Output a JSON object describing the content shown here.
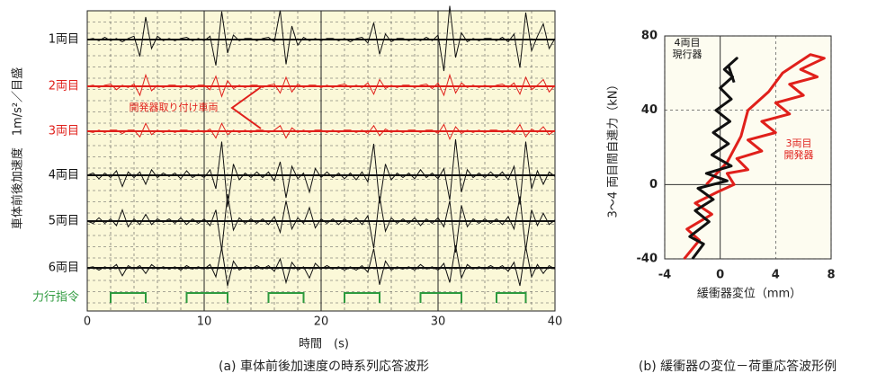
{
  "chart_data": [
    {
      "type": "waveform",
      "y_label": "車体前後加速度　1m/s²／目盛",
      "x_label": "時間　(s)",
      "caption": "(a) 車体前後加速度の時系列応答波形",
      "annotation": "開発器取り付け車両",
      "xlim": [
        0,
        40
      ],
      "xticks": [
        0,
        10,
        20,
        30,
        40
      ],
      "x": [
        0,
        0.5,
        1,
        1.5,
        2,
        2.5,
        3,
        3.5,
        4,
        4.5,
        5,
        5.5,
        6,
        6.5,
        7,
        7.5,
        8,
        8.5,
        9,
        9.5,
        10,
        10.5,
        11,
        11.5,
        12,
        12.5,
        13,
        13.5,
        14,
        14.5,
        15,
        15.5,
        16,
        16.5,
        17,
        17.5,
        18,
        18.5,
        19,
        19.5,
        20,
        20.5,
        21,
        21.5,
        22,
        22.5,
        23,
        23.5,
        24,
        24.5,
        25,
        25.5,
        26,
        26.5,
        27,
        27.5,
        28,
        28.5,
        29,
        29.5,
        30,
        30.5,
        31,
        31.5,
        32,
        32.5,
        33,
        33.5,
        34,
        34.5,
        35,
        35.5,
        36,
        36.5,
        37,
        37.5,
        38,
        38.5,
        39,
        39.5,
        40
      ],
      "series": [
        {
          "name": "1両目",
          "color": "#111111",
          "values": [
            0,
            0.1,
            -0.1,
            0.2,
            -0.1,
            0.1,
            -0.2,
            0.1,
            0.3,
            -1.5,
            2.0,
            -0.8,
            0.3,
            -0.1,
            0.1,
            -0.1,
            0.1,
            0.2,
            -0.1,
            0.1,
            -0.1,
            0.3,
            -2.3,
            2.5,
            -1.2,
            0.4,
            -0.1,
            0.1,
            0.1,
            -0.1,
            0.1,
            0.2,
            -0.2,
            2.6,
            -2.2,
            1.2,
            -0.5,
            0.2,
            -0.1,
            0.1,
            -0.1,
            0.1,
            0.1,
            -0.1,
            0.1,
            -0.2,
            0.1,
            0.2,
            -0.3,
            1.5,
            -1.3,
            0.5,
            -0.2,
            0.1,
            0.1,
            -0.1,
            0.1,
            -0.1,
            0.2,
            -0.1,
            0.4,
            -2.8,
            3.0,
            -1.6,
            0.6,
            -0.2,
            0.1,
            -0.1,
            0.1,
            0.1,
            -0.1,
            0.2,
            -0.2,
            0.5,
            -2.5,
            2.4,
            -1.0,
            0.3,
            1.4,
            -0.8,
            0.1
          ]
        },
        {
          "name": "2両目",
          "color": "#e0201b",
          "values": [
            0,
            0.1,
            -0.1,
            0.1,
            0.2,
            -0.3,
            0.1,
            -0.1,
            0.2,
            -0.8,
            1.0,
            -0.4,
            0.1,
            -0.1,
            0.1,
            0.1,
            -0.1,
            0.1,
            -0.2,
            0.1,
            0.1,
            -0.3,
            0.9,
            -0.9,
            0.5,
            -0.2,
            0.1,
            -0.1,
            0.1,
            0.1,
            -0.1,
            0.1,
            0.2,
            -0.6,
            0.8,
            -0.5,
            0.2,
            -0.1,
            0.1,
            0.1,
            -0.1,
            0.1,
            -0.1,
            0.1,
            0.2,
            -0.1,
            0.1,
            -0.1,
            0.3,
            -0.7,
            0.6,
            -0.2,
            0.1,
            -0.1,
            0.1,
            0.1,
            -0.1,
            0.1,
            0.2,
            -0.2,
            0.3,
            -0.8,
            1.0,
            -0.6,
            0.3,
            -0.1,
            0.1,
            -0.1,
            0.1,
            -0.1,
            0.1,
            0.2,
            -0.1,
            0.3,
            -0.7,
            0.8,
            -0.3,
            0.1,
            0.6,
            -0.5,
            0.1
          ]
        },
        {
          "name": "3両目",
          "color": "#e0201b",
          "values": [
            0,
            -0.1,
            0.1,
            -0.1,
            0.1,
            0.1,
            -0.2,
            0.1,
            0.1,
            -0.5,
            0.7,
            -0.3,
            0.1,
            -0.1,
            0.1,
            -0.1,
            0.1,
            0.1,
            -0.1,
            0.1,
            -0.1,
            0.2,
            -0.6,
            0.7,
            -0.3,
            0.1,
            -0.1,
            0.1,
            -0.1,
            0.1,
            0.1,
            -0.1,
            0.1,
            0.5,
            -0.6,
            0.3,
            -0.1,
            0.1,
            -0.1,
            0.1,
            0.1,
            -0.1,
            0.1,
            -0.1,
            0.1,
            0.1,
            -0.1,
            0.1,
            -0.2,
            0.5,
            -0.4,
            0.2,
            -0.1,
            0.1,
            -0.1,
            0.1,
            0.1,
            -0.1,
            0.1,
            0.1,
            -0.2,
            0.6,
            -0.7,
            0.4,
            -0.2,
            0.1,
            -0.1,
            0.1,
            -0.1,
            0.1,
            0.1,
            -0.1,
            0.1,
            -0.2,
            0.6,
            -0.5,
            0.2,
            -0.1,
            0.4,
            -0.3,
            0.1
          ]
        },
        {
          "name": "4両目",
          "color": "#111111",
          "values": [
            0,
            0.2,
            -0.3,
            0.2,
            -0.2,
            0.4,
            -1.0,
            0.3,
            -0.2,
            0.3,
            -0.8,
            0.5,
            -0.2,
            0.2,
            -0.1,
            0.2,
            -0.3,
            0.4,
            -0.2,
            0.1,
            -0.2,
            0.5,
            -1.2,
            3.0,
            -2.8,
            1.0,
            -0.4,
            0.2,
            -0.2,
            0.3,
            -0.2,
            0.3,
            -0.5,
            1.2,
            -2.0,
            0.8,
            -0.3,
            0.2,
            -1.5,
            0.6,
            -0.2,
            0.3,
            -0.2,
            0.2,
            -0.3,
            0.2,
            -0.4,
            0.3,
            -0.6,
            2.8,
            -2.5,
            1.0,
            -0.4,
            0.2,
            -0.2,
            0.2,
            -0.3,
            0.5,
            -0.2,
            0.2,
            -0.3,
            0.6,
            -2.2,
            3.2,
            -1.5,
            0.5,
            -0.2,
            0.2,
            -0.2,
            0.3,
            -0.2,
            0.3,
            -0.4,
            0.8,
            -2.6,
            3.0,
            -1.2,
            0.4,
            -0.8,
            0.3,
            -0.1
          ]
        },
        {
          "name": "5両目",
          "color": "#111111",
          "values": [
            0,
            -0.2,
            0.3,
            -0.2,
            0.2,
            -0.4,
            1.0,
            -0.5,
            0.2,
            -0.3,
            0.6,
            -0.3,
            0.2,
            -0.1,
            0.2,
            -0.2,
            0.3,
            -0.3,
            0.2,
            -0.2,
            0.2,
            -0.4,
            1.0,
            -2.6,
            2.4,
            -0.8,
            0.3,
            -0.2,
            0.2,
            -0.2,
            0.2,
            -0.3,
            0.4,
            -1.0,
            1.8,
            -0.7,
            0.3,
            -0.2,
            1.2,
            -0.6,
            0.2,
            -0.2,
            0.2,
            -0.3,
            0.2,
            -0.2,
            0.3,
            -0.3,
            0.5,
            -2.4,
            2.2,
            -0.9,
            0.3,
            -0.2,
            0.2,
            -0.2,
            0.3,
            -0.4,
            0.2,
            -0.2,
            0.3,
            -0.5,
            1.8,
            -2.8,
            1.4,
            -0.5,
            0.2,
            -0.2,
            0.2,
            -0.2,
            0.2,
            -0.3,
            0.4,
            -0.7,
            2.2,
            -2.6,
            1.0,
            -0.4,
            0.7,
            -0.3,
            0.1
          ]
        },
        {
          "name": "6両目",
          "color": "#111111",
          "values": [
            0,
            0.1,
            -0.2,
            0.1,
            -0.1,
            0.3,
            -0.7,
            0.2,
            -0.1,
            0.2,
            -0.5,
            0.3,
            -0.1,
            0.1,
            -0.1,
            0.1,
            -0.2,
            0.2,
            -0.1,
            0.1,
            -0.1,
            0.3,
            -0.8,
            1.8,
            -1.6,
            0.6,
            -0.2,
            0.1,
            -0.1,
            0.2,
            -0.1,
            0.2,
            -0.3,
            0.8,
            -1.3,
            0.5,
            -0.2,
            0.1,
            -0.9,
            0.4,
            -0.1,
            0.2,
            -0.1,
            0.1,
            -0.2,
            0.1,
            -0.2,
            0.2,
            -0.4,
            1.7,
            -1.5,
            0.6,
            -0.2,
            0.1,
            -0.1,
            0.1,
            -0.2,
            0.3,
            -0.1,
            0.1,
            -0.2,
            0.4,
            -1.3,
            2.0,
            -0.9,
            0.3,
            -0.1,
            0.1,
            -0.1,
            0.2,
            -0.1,
            0.2,
            -0.3,
            0.5,
            -1.6,
            1.9,
            -0.8,
            0.3,
            -0.5,
            0.2,
            -0.1
          ]
        }
      ],
      "command": {
        "name": "力行指令",
        "color": "#2e9a3e",
        "intervals": [
          [
            2,
            5
          ],
          [
            8.5,
            12
          ],
          [
            15.5,
            18.5
          ],
          [
            22,
            25
          ],
          [
            28.5,
            32
          ],
          [
            35,
            37.5
          ]
        ]
      }
    },
    {
      "type": "scatter-line",
      "y_label": "3～4 両目間自連力（kN）",
      "x_label": "緩衝器変位（mm）",
      "caption": "(b) 緩衝器の変位－荷重応答波形例",
      "xlim": [
        -4,
        8
      ],
      "xticks": [
        -4,
        0,
        4,
        8
      ],
      "ylim": [
        -40,
        80
      ],
      "yticks": [
        -40,
        0,
        40,
        80
      ],
      "series": [
        {
          "name": "3両目\n開発器",
          "color": "#e0201b",
          "x": [
            -2.6,
            -1.5,
            -2.4,
            -0.6,
            -1.8,
            -0.2,
            1,
            0.5,
            2,
            1.2,
            3,
            2,
            4,
            3,
            5,
            4,
            6,
            5,
            7,
            5.8,
            7.5,
            6.5,
            4.5,
            3.5,
            2,
            1.5,
            0.5,
            -1
          ],
          "values": [
            -40,
            -30,
            -24,
            -16,
            -10,
            -4,
            0,
            6,
            8,
            14,
            18,
            24,
            28,
            34,
            38,
            44,
            48,
            54,
            58,
            62,
            68,
            70,
            60,
            50,
            40,
            26,
            12,
            0
          ]
        },
        {
          "name": "4両目\n現行器",
          "color": "#111111",
          "x": [
            -2,
            -1.2,
            -2.2,
            -0.8,
            -1.8,
            -0.5,
            -1.6,
            0.5,
            -1,
            0.8,
            -0.6,
            0.6,
            -0.5,
            0.7,
            -0.3,
            0.8,
            0,
            0.9,
            0.3,
            1.2,
            0.6,
            1.0
          ],
          "values": [
            -40,
            -32,
            -28,
            -20,
            -14,
            -8,
            -2,
            2,
            6,
            10,
            16,
            22,
            28,
            34,
            40,
            46,
            52,
            58,
            62,
            68,
            64,
            55
          ]
        }
      ]
    }
  ]
}
